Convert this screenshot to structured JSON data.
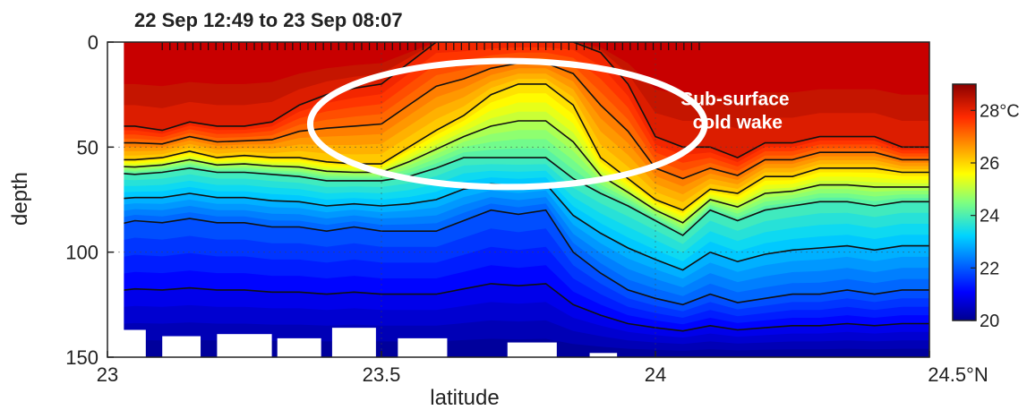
{
  "chart_data": {
    "type": "heatmap",
    "title": "22 Sep 12:49 to 23 Sep 08:07",
    "xlabel": "latitude",
    "ylabel": "depth",
    "xlim": [
      23,
      24.5
    ],
    "ylim": [
      0,
      150
    ],
    "y_inverted": true,
    "x_ticks": [
      23,
      23.5,
      24,
      24.5
    ],
    "x_tick_labels": [
      "23",
      "23.5",
      "24",
      "24.5°N"
    ],
    "y_ticks": [
      0,
      50,
      100,
      150
    ],
    "y_tick_labels": [
      "0",
      "50",
      "100",
      "150"
    ],
    "colorbar": {
      "min": 20,
      "max": 29,
      "ticks": [
        20,
        22,
        24,
        26,
        28
      ],
      "tick_labels": [
        "20",
        "22",
        "24",
        "26",
        "28°C"
      ],
      "colormap": "jet"
    },
    "grid": "dotted",
    "contour_interval_degC": 1,
    "section_columns": {
      "latitude": [
        23.0,
        23.05,
        23.1,
        23.15,
        23.2,
        23.25,
        23.3,
        23.35,
        23.4,
        23.45,
        23.5,
        23.55,
        23.6,
        23.65,
        23.7,
        23.75,
        23.8,
        23.85,
        23.9,
        23.95,
        24.0,
        24.05,
        24.1,
        24.15,
        24.2,
        24.25,
        24.3,
        24.35,
        24.4,
        24.45,
        24.5
      ],
      "depth_28C": [
        40,
        40,
        42,
        38,
        40,
        40,
        38,
        30,
        25,
        22,
        20,
        10,
        0,
        0,
        0,
        0,
        0,
        0,
        5,
        20,
        45,
        50,
        50,
        55,
        48,
        48,
        45,
        45,
        45,
        50,
        50
      ],
      "depth_26C": [
        56,
        56,
        55,
        52,
        55,
        54,
        55,
        55,
        57,
        58,
        58,
        50,
        42,
        35,
        25,
        20,
        20,
        30,
        55,
        65,
        75,
        80,
        70,
        72,
        64,
        64,
        60,
        60,
        60,
        62,
        62
      ],
      "depth_24C": [
        62,
        63,
        62,
        60,
        62,
        62,
        63,
        64,
        66,
        66,
        66,
        64,
        60,
        55,
        55,
        55,
        55,
        65,
        72,
        78,
        85,
        92,
        80,
        85,
        80,
        78,
        76,
        76,
        78,
        76,
        76
      ],
      "depth_22C": [
        88,
        85,
        86,
        84,
        86,
        86,
        88,
        88,
        90,
        88,
        90,
        90,
        90,
        85,
        80,
        82,
        80,
        100,
        110,
        118,
        122,
        125,
        120,
        124,
        122,
        120,
        120,
        118,
        120,
        118,
        118
      ],
      "depth_20C": [
        150,
        150,
        150,
        150,
        150,
        150,
        150,
        150,
        150,
        150,
        150,
        150,
        150,
        150,
        150,
        150,
        150,
        150,
        150,
        150,
        150,
        150,
        150,
        150,
        150,
        150,
        150,
        150,
        150,
        150,
        150
      ]
    },
    "data_gaps": [
      {
        "lat0": 23.0,
        "lat1": 23.03,
        "depth_from": 0
      },
      {
        "lat0": 23.0,
        "lat1": 23.07,
        "depth_from": 137
      },
      {
        "lat0": 23.1,
        "lat1": 23.17,
        "depth_from": 140
      },
      {
        "lat0": 23.2,
        "lat1": 23.3,
        "depth_from": 139
      },
      {
        "lat0": 23.31,
        "lat1": 23.39,
        "depth_from": 141
      },
      {
        "lat0": 23.41,
        "lat1": 23.49,
        "depth_from": 136
      },
      {
        "lat0": 23.53,
        "lat1": 23.62,
        "depth_from": 141
      },
      {
        "lat0": 23.73,
        "lat1": 23.82,
        "depth_from": 143
      },
      {
        "lat0": 23.88,
        "lat1": 23.93,
        "depth_from": 148
      }
    ],
    "annotations": [
      {
        "text_lines": [
          "Sub-surface",
          "cold wake"
        ],
        "lat": 24.15,
        "depth": 30
      },
      {
        "shape": "ellipse",
        "center_lat": 23.73,
        "center_depth": 39,
        "lat_radius": 0.36,
        "depth_radius": 30,
        "color": "#ffffff"
      }
    ]
  }
}
